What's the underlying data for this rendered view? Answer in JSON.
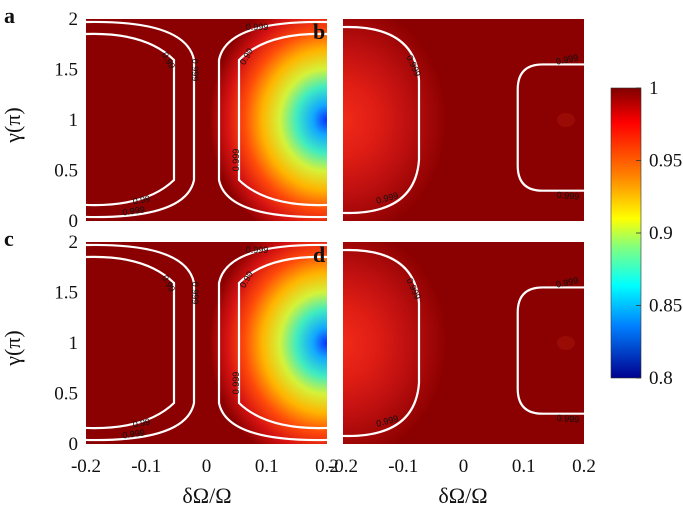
{
  "chart_data": {
    "type": "heatmap",
    "panels": [
      {
        "label": "a",
        "row": 0,
        "col": 0,
        "pattern": "two-sided"
      },
      {
        "label": "b",
        "row": 0,
        "col": 1,
        "pattern": "one-sided"
      },
      {
        "label": "c",
        "row": 1,
        "col": 0,
        "pattern": "two-sided"
      },
      {
        "label": "d",
        "row": 1,
        "col": 1,
        "pattern": "one-sided"
      }
    ],
    "xlabel": "δΩ/Ω",
    "ylabel": "γ(π)",
    "xlim": [
      -0.2,
      0.2
    ],
    "ylim": [
      0,
      2
    ],
    "x_ticks": [
      "-0.2",
      "-0.1",
      "0",
      "0.1",
      "0.2"
    ],
    "y_ticks": [
      "0",
      "0.5",
      "1",
      "1.5",
      "2"
    ],
    "colorbar": {
      "range": [
        0.8,
        1
      ],
      "ticks": [
        "1",
        "0.95",
        "0.9",
        "0.85",
        "0.8"
      ],
      "colormap": "jet"
    },
    "contour_levels": [
      "0.99",
      "0.999"
    ]
  }
}
